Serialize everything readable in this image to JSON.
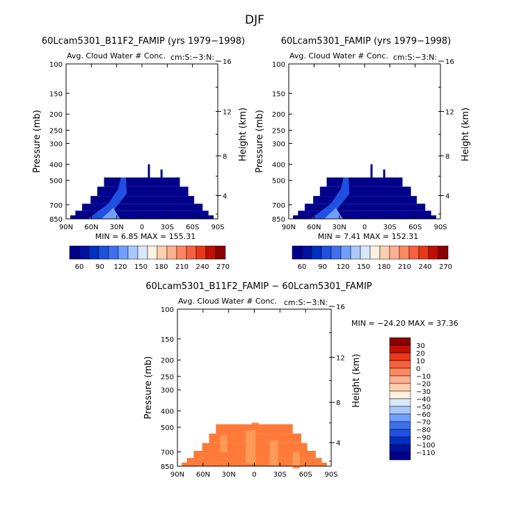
{
  "season": "DJF",
  "axes_common": {
    "ylabel": "Pressure (mb)",
    "y2label": "Height (km)",
    "pressure_ticks": [
      "100",
      "150",
      "200",
      "250",
      "300",
      "400",
      "500",
      "700",
      "850"
    ],
    "height_ticks": [
      "16",
      "12",
      "8",
      "4"
    ],
    "lat_ticks": [
      "90N",
      "60N",
      "30N",
      "0",
      "30S",
      "60S",
      "90S"
    ],
    "field_label": "Avg. Cloud Water # Conc.",
    "region_label": "cm:S:−3:N:"
  },
  "colorbar_top": {
    "labels": [
      "60",
      "90",
      "120",
      "150",
      "180",
      "210",
      "240",
      "270"
    ],
    "colors": [
      "#00008b",
      "#00109f",
      "#0030c0",
      "#2050e0",
      "#4070f0",
      "#70a0ff",
      "#a8c8ff",
      "#d8e8ff",
      "#fff0e0",
      "#ffd0b0",
      "#ffb090",
      "#ff8860",
      "#f86040",
      "#e83818",
      "#c01000",
      "#8b0000"
    ]
  },
  "colorbar_diff": {
    "labels": [
      "30",
      "20",
      "10",
      "0",
      "−10",
      "−20",
      "−30",
      "−40",
      "−50",
      "−60",
      "−70",
      "−80",
      "−90",
      "−100",
      "−110"
    ],
    "colors": [
      "#8b0000",
      "#c01000",
      "#e83818",
      "#f86040",
      "#ff8860",
      "#ffb090",
      "#ffd0b0",
      "#fff0e0",
      "#d8e8ff",
      "#a8c8ff",
      "#70a0ff",
      "#4070f0",
      "#2050e0",
      "#0030c0",
      "#00109f",
      "#00008b"
    ]
  },
  "chart_data": [
    {
      "type": "heatmap",
      "title": "60Lcam5301_B11F2_FAMIP (yrs 1979−1998)",
      "xlabel": "",
      "ylabel": "Pressure (mb)",
      "y2label": "Height (km)",
      "xlim": [
        -90,
        90
      ],
      "ylim": [
        850,
        100
      ],
      "min_text": "MIN =    6.85   MAX = 155.31",
      "min": 6.85,
      "max": 155.31
    },
    {
      "type": "heatmap",
      "title": "60Lcam5301_FAMIP (yrs 1979−1998)",
      "xlabel": "",
      "ylabel": "Pressure (mb)",
      "y2label": "Height (km)",
      "xlim": [
        -90,
        90
      ],
      "ylim": [
        850,
        100
      ],
      "min_text": "MIN =    7.41   MAX = 152.31",
      "min": 7.41,
      "max": 152.31
    },
    {
      "type": "heatmap",
      "title": "60Lcam5301_B11F2_FAMIP − 60Lcam5301_FAMIP",
      "xlabel": "",
      "ylabel": "Pressure (mb)",
      "y2label": "Height (km)",
      "xlim": [
        -90,
        90
      ],
      "ylim": [
        850,
        100
      ],
      "min_text": "MIN = −24.20   MAX =  37.36",
      "min": -24.2,
      "max": 37.36
    }
  ]
}
